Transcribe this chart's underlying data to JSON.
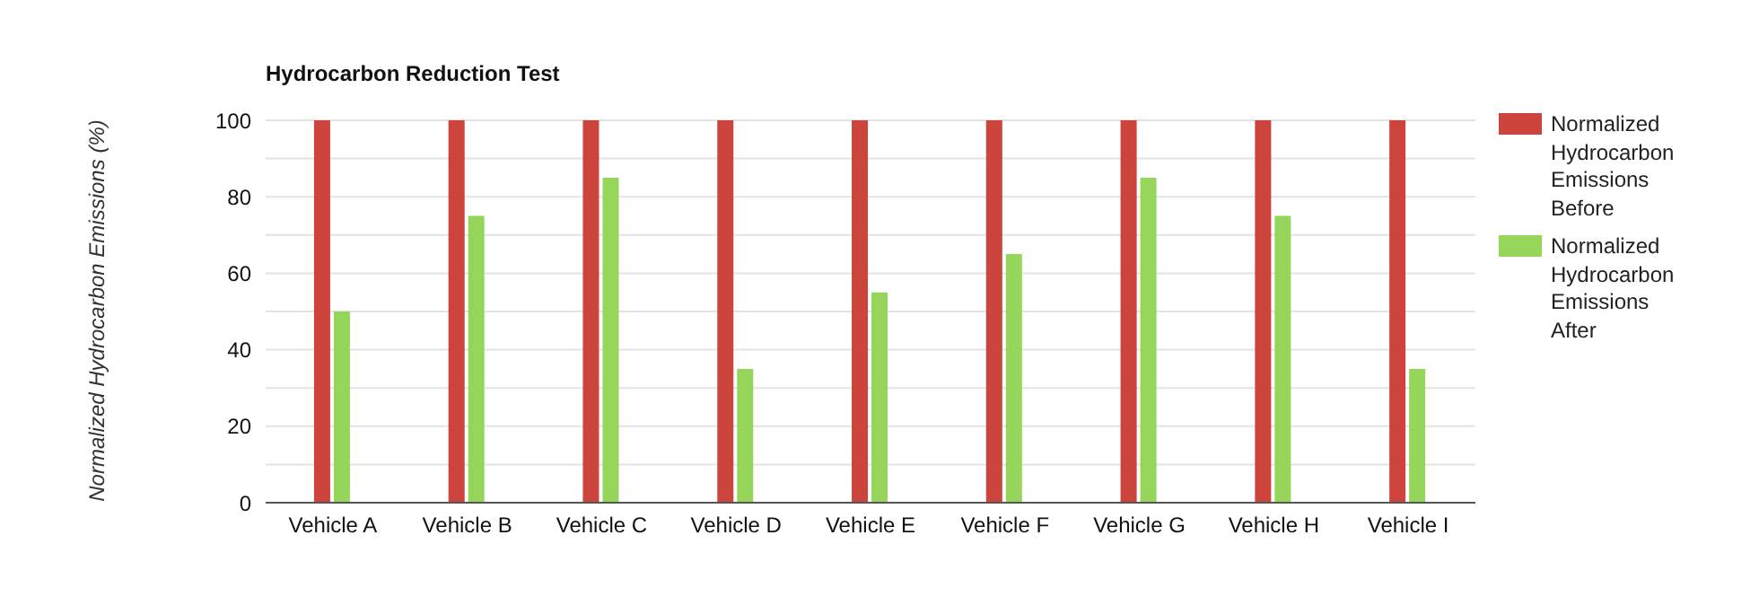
{
  "chart_data": {
    "type": "bar",
    "title": "Hydrocarbon Reduction Test",
    "ylabel": "Normalized Hydrocarbon Emissions (%)",
    "categories": [
      "Vehicle A",
      "Vehicle B",
      "Vehicle C",
      "Vehicle D",
      "Vehicle E",
      "Vehicle F",
      "Vehicle G",
      "Vehicle H",
      "Vehicle I"
    ],
    "series": [
      {
        "name": "Normalized Hydrocarbon Emissions Before",
        "color": "#cc443b",
        "values": [
          100,
          100,
          100,
          100,
          100,
          100,
          100,
          100,
          100
        ]
      },
      {
        "name": "Normalized Hydrocarbon Emissions After",
        "color": "#95d65a",
        "values": [
          50,
          75,
          85,
          35,
          55,
          65,
          85,
          75,
          35
        ]
      }
    ],
    "ylim": [
      0,
      100
    ],
    "yticks": [
      0,
      {
        "value": 10,
        "label": null
      },
      20,
      {
        "value": 30,
        "label": null
      },
      40,
      {
        "value": 50,
        "label": null
      },
      60,
      {
        "value": 70,
        "label": null
      },
      80,
      {
        "value": 90,
        "label": null
      },
      100
    ],
    "grid": "y",
    "legend": "right"
  }
}
